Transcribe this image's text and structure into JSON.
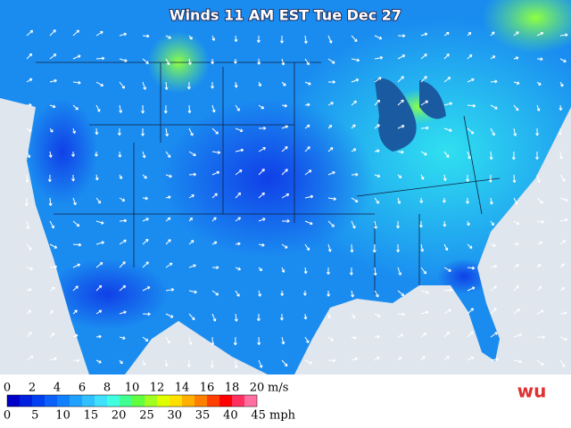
{
  "title": "Winds 11 AM EST Tue Dec 27",
  "legend": {
    "ms_labels": [
      0,
      2,
      4,
      6,
      8,
      10,
      12,
      14,
      16,
      18,
      20
    ],
    "ms_unit": "m/s",
    "mph_labels": [
      0,
      5,
      10,
      15,
      20,
      25,
      30,
      35,
      40,
      45
    ],
    "mph_unit": "mph",
    "colors": [
      "#0000c8",
      "#0020e0",
      "#0040f0",
      "#0a60f8",
      "#1080ff",
      "#20a0ff",
      "#30c0ff",
      "#40e0ff",
      "#40ffe0",
      "#40ff90",
      "#60ff40",
      "#a0ff20",
      "#e0ff00",
      "#ffe000",
      "#ffb000",
      "#ff8000",
      "#ff4000",
      "#ff0000",
      "#ff3060",
      "#ff70a0"
    ]
  },
  "logo": "wu"
}
